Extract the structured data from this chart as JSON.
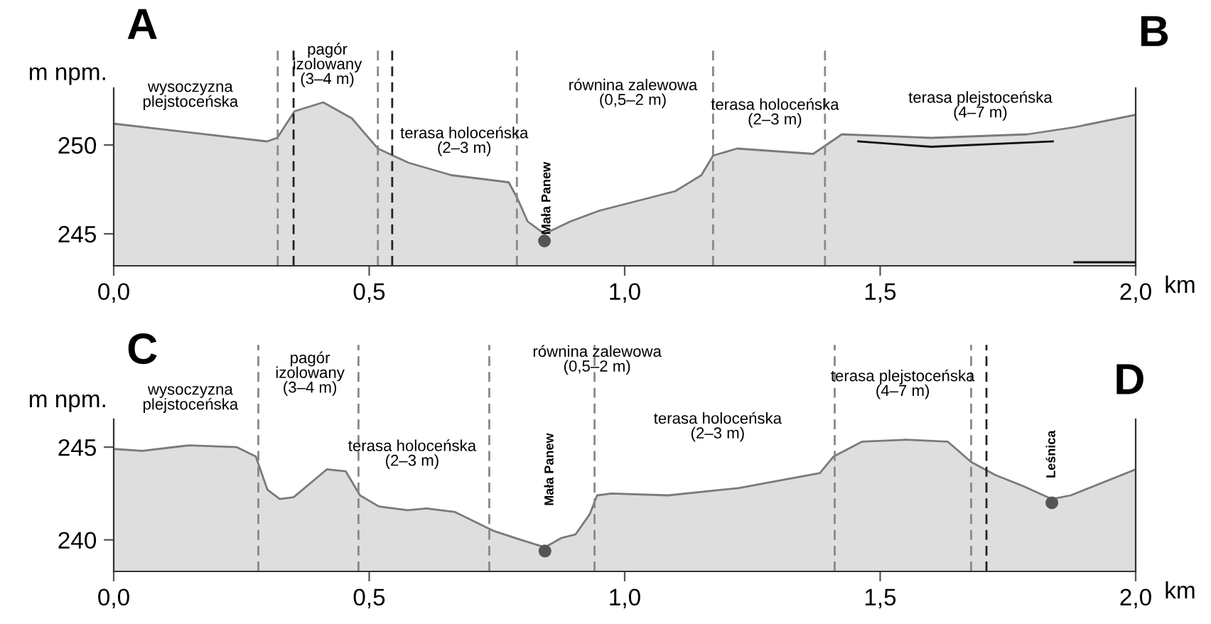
{
  "chart_data": [
    {
      "type": "area",
      "xlabel": "km",
      "ylabel": "m npm.",
      "xlim": [
        0,
        2.0
      ],
      "ylim": [
        243.2,
        253.2
      ],
      "xticks": [
        {
          "value": 0,
          "label": "0,0"
        },
        {
          "value": 0.5,
          "label": "0,5"
        },
        {
          "value": 1.0,
          "label": "1,0"
        },
        {
          "value": 1.5,
          "label": "1,5"
        },
        {
          "value": 2.0,
          "label": "2,0"
        }
      ],
      "yticks": [
        245,
        250
      ],
      "series": [
        {
          "color": "#dedede",
          "x": [
            0,
            0.3,
            0.32,
            0.354,
            0.41,
            0.466,
            0.517,
            0.577,
            0.661,
            0.773,
            0.79,
            0.81,
            0.843,
            0.894,
            0.95,
            1.099,
            1.15,
            1.173,
            1.22,
            1.369,
            1.425,
            1.6,
            1.788,
            1.88,
            2.0
          ],
          "values": [
            251.2,
            250.2,
            250.4,
            251.9,
            252.4,
            251.5,
            249.8,
            249.0,
            248.3,
            247.9,
            247.0,
            245.7,
            245.0,
            245.7,
            246.3,
            247.4,
            248.3,
            249.4,
            249.8,
            249.5,
            250.6,
            250.4,
            250.6,
            251.0,
            251.7
          ]
        },
        {
          "type": "line",
          "color": "#111111",
          "x": [
            1.457,
            1.6,
            1.838
          ],
          "values": [
            250.2,
            249.9,
            250.2
          ]
        },
        {
          "type": "line",
          "color": "#111111",
          "x": [
            1.88,
            2.0
          ],
          "values": [
            243.4,
            243.4
          ]
        },
        {
          "type": "scatter",
          "color": "#555555",
          "marker": "circle",
          "x": [
            0.843
          ],
          "values": [
            244.6
          ]
        }
      ],
      "ref_lines": [
        {
          "axis": "x",
          "value": 0.321,
          "color": "#888888",
          "line_style": "dashed"
        },
        {
          "axis": "x",
          "value": 0.352,
          "color": "#222222",
          "line_style": "dashed"
        },
        {
          "axis": "x",
          "value": 0.517,
          "color": "#888888",
          "line_style": "dashed"
        },
        {
          "axis": "x",
          "value": 0.545,
          "color": "#222222",
          "line_style": "dashed"
        },
        {
          "axis": "x",
          "value": 0.789,
          "color": "#888888",
          "line_style": "dashed"
        },
        {
          "axis": "x",
          "value": 1.173,
          "color": "#888888",
          "line_style": "dashed"
        },
        {
          "axis": "x",
          "value": 1.392,
          "color": "#888888",
          "line_style": "dashed"
        }
      ],
      "annotations": [
        "A",
        "B",
        "wysoczyzna\nplejstoceńska",
        "pagór\nizolowany\n(3–4 m)",
        "terasa holoceńska\n(2–3 m)",
        "równina zalewowa\n(0,5–2 m)",
        "terasa holoceńska\n(2–3 m)",
        "terasa plejstoceńska\n(4–7 m)",
        "Mała Panew"
      ]
    },
    {
      "type": "area",
      "xlabel": "km",
      "ylabel": "m npm.",
      "xlim": [
        0,
        2.0
      ],
      "ylim": [
        238.3,
        246.5
      ],
      "xticks": [
        {
          "value": 0,
          "label": "0,0"
        },
        {
          "value": 0.5,
          "label": "0,5"
        },
        {
          "value": 1.0,
          "label": "1,0"
        },
        {
          "value": 1.5,
          "label": "1,5"
        },
        {
          "value": 2.0,
          "label": "2,0"
        }
      ],
      "yticks": [
        240,
        245
      ],
      "series": [
        {
          "color": "#dedede",
          "x": [
            0,
            0.056,
            0.148,
            0.241,
            0.278,
            0.301,
            0.325,
            0.352,
            0.417,
            0.454,
            0.482,
            0.519,
            0.575,
            0.612,
            0.668,
            0.742,
            0.797,
            0.844,
            0.876,
            0.904,
            0.932,
            0.946,
            0.974,
            1.085,
            1.224,
            1.382,
            1.409,
            1.465,
            1.549,
            1.632,
            1.678,
            1.725,
            1.78,
            1.836,
            1.873,
            2.0
          ],
          "values": [
            244.9,
            244.8,
            245.1,
            245.0,
            244.5,
            242.7,
            242.2,
            242.3,
            243.8,
            243.7,
            242.4,
            241.8,
            241.6,
            241.7,
            241.5,
            240.5,
            240.0,
            239.6,
            240.1,
            240.3,
            241.4,
            242.4,
            242.5,
            242.4,
            242.8,
            243.6,
            244.5,
            245.3,
            245.4,
            245.3,
            244.2,
            243.5,
            242.9,
            242.2,
            242.4,
            243.8
          ]
        },
        {
          "type": "scatter",
          "color": "#555555",
          "marker": "circle",
          "x": [
            0.844,
            1.836
          ],
          "values": [
            239.4,
            242.0
          ]
        }
      ],
      "ref_lines": [
        {
          "axis": "x",
          "value": 0.283,
          "color": "#888888",
          "line_style": "dashed"
        },
        {
          "axis": "x",
          "value": 0.479,
          "color": "#888888",
          "line_style": "dashed"
        },
        {
          "axis": "x",
          "value": 0.735,
          "color": "#888888",
          "line_style": "dashed"
        },
        {
          "axis": "x",
          "value": 0.941,
          "color": "#888888",
          "line_style": "dashed"
        },
        {
          "axis": "x",
          "value": 1.411,
          "color": "#888888",
          "line_style": "dashed"
        },
        {
          "axis": "x",
          "value": 1.678,
          "color": "#888888",
          "line_style": "dashed"
        },
        {
          "axis": "x",
          "value": 1.708,
          "color": "#222222",
          "line_style": "dashed"
        }
      ],
      "annotations": [
        "C",
        "D",
        "wysoczyzna\nplejstoceńska",
        "pagór\nizolowany\n(3–4 m)",
        "terasa holoceńska\n(2–3 m)",
        "równina zalewowa\n(0,5–2 m)",
        "terasa holoceńska\n(2–3 m)",
        "terasa plejstoceńska\n(4–7 m)",
        "Mała Panew",
        "Leśnica"
      ]
    }
  ]
}
